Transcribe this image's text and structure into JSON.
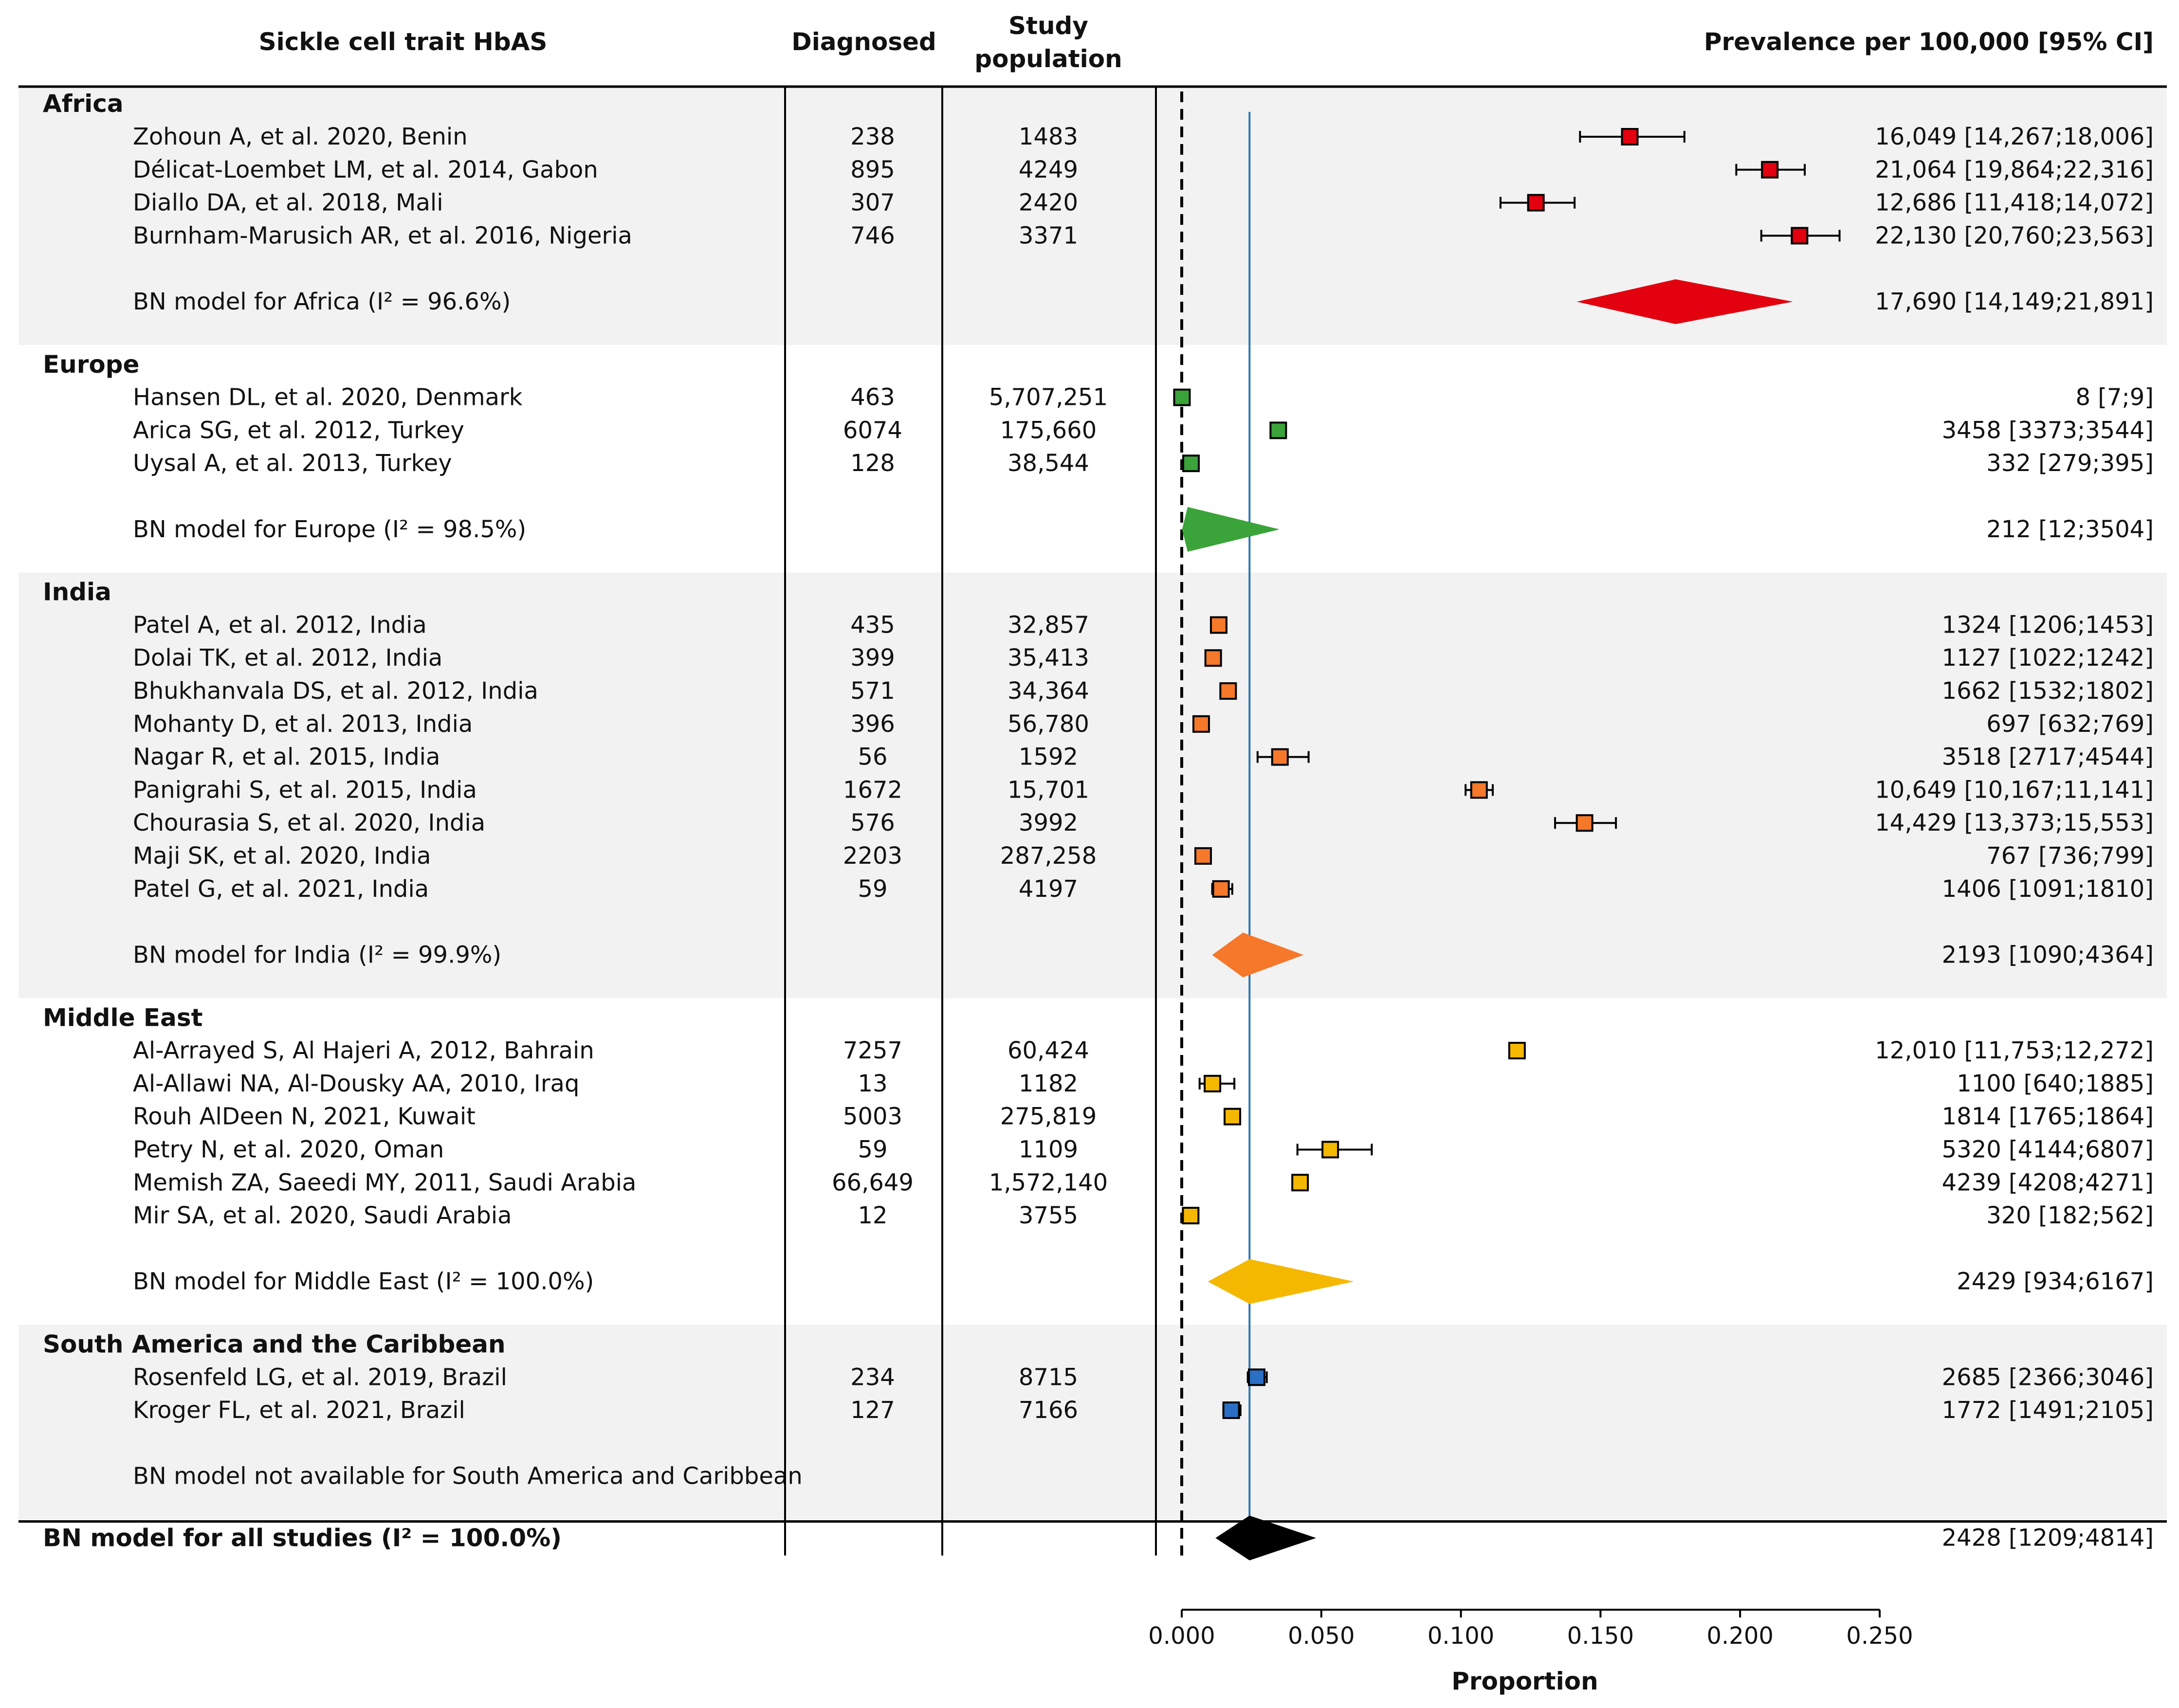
{
  "header": {
    "col_study": "Sickle cell trait HbAS",
    "col_diagnosed": "Diagnosed",
    "col_population_1": "Study",
    "col_population_2": "population",
    "col_prevalence": "Prevalence per 100,000 [95% CI]"
  },
  "chart_data": {
    "type": "forest",
    "xlabel": "Proportion",
    "xlim": [
      0,
      0.25
    ],
    "xticks": [
      "0.000",
      "0.050",
      "0.100",
      "0.150",
      "0.200",
      "0.250"
    ],
    "reference_line": 0,
    "overall_line": 0.02428,
    "colors": {
      "Africa": "#e3000f",
      "Europe": "#3aa33a",
      "India": "#f5782b",
      "Middle East": "#f5b800",
      "South America and the Caribbean": "#2a6fc4",
      "overall": "#000000",
      "axis_line": "#2e75b6"
    },
    "groups": [
      {
        "name": "Africa",
        "studies": [
          {
            "label": "Zohoun A, et al. 2020, Benin",
            "diagnosed": "238",
            "population": "1483",
            "est": 0.16049,
            "lo": 0.14267,
            "hi": 0.18006,
            "text": "16,049 [14,267;18,006]"
          },
          {
            "label": "Délicat-Loembet LM, et al. 2014, Gabon",
            "diagnosed": "895",
            "population": "4249",
            "est": 0.21064,
            "lo": 0.19864,
            "hi": 0.22316,
            "text": "21,064 [19,864;22,316]"
          },
          {
            "label": "Diallo DA, et al. 2018, Mali",
            "diagnosed": "307",
            "population": "2420",
            "est": 0.12686,
            "lo": 0.11418,
            "hi": 0.14072,
            "text": "12,686 [11,418;14,072]"
          },
          {
            "label": "Burnham-Marusich AR, et al. 2016, Nigeria",
            "diagnosed": "746",
            "population": "3371",
            "est": 0.2213,
            "lo": 0.2076,
            "hi": 0.23563,
            "text": "22,130 [20,760;23,563]"
          }
        ],
        "model": {
          "label": "BN model for Africa (I² = 96.6%)",
          "est": 0.1769,
          "lo": 0.14149,
          "hi": 0.21891,
          "text": "17,690 [14,149;21,891]"
        }
      },
      {
        "name": "Europe",
        "studies": [
          {
            "label": "Hansen DL, et al. 2020, Denmark",
            "diagnosed": "463",
            "population": "5,707,251",
            "est": 8e-05,
            "lo": 7e-05,
            "hi": 9e-05,
            "text": "8 [7;9]"
          },
          {
            "label": "Arica SG, et al. 2012, Turkey",
            "diagnosed": "6074",
            "population": "175,660",
            "est": 0.03458,
            "lo": 0.03373,
            "hi": 0.03544,
            "text": "3458 [3373;3544]"
          },
          {
            "label": "Uysal A, et al. 2013, Turkey",
            "diagnosed": "128",
            "population": "38,544",
            "est": 0.00332,
            "lo": 0.00279,
            "hi": 0.00395,
            "text": "332 [279;395]"
          }
        ],
        "model": {
          "label": "BN model for Europe (I² = 98.5%)",
          "est": 0.00212,
          "lo": 0.00012,
          "hi": 0.03504,
          "text": "212 [12;3504]"
        }
      },
      {
        "name": "India",
        "studies": [
          {
            "label": "Patel A, et al. 2012, India",
            "diagnosed": "435",
            "population": "32,857",
            "est": 0.01324,
            "lo": 0.01206,
            "hi": 0.01453,
            "text": "1324 [1206;1453]"
          },
          {
            "label": "Dolai TK, et al. 2012, India",
            "diagnosed": "399",
            "population": "35,413",
            "est": 0.01127,
            "lo": 0.01022,
            "hi": 0.01242,
            "text": "1127 [1022;1242]"
          },
          {
            "label": "Bhukhanvala DS, et al. 2012, India",
            "diagnosed": "571",
            "population": "34,364",
            "est": 0.01662,
            "lo": 0.01532,
            "hi": 0.01802,
            "text": "1662 [1532;1802]"
          },
          {
            "label": "Mohanty D, et al. 2013, India",
            "diagnosed": "396",
            "population": "56,780",
            "est": 0.00697,
            "lo": 0.00632,
            "hi": 0.00769,
            "text": "697 [632;769]"
          },
          {
            "label": "Nagar R, et al. 2015, India",
            "diagnosed": "56",
            "population": "1592",
            "est": 0.03518,
            "lo": 0.02717,
            "hi": 0.04544,
            "text": "3518 [2717;4544]"
          },
          {
            "label": "Panigrahi S, et al. 2015, India",
            "diagnosed": "1672",
            "population": "15,701",
            "est": 0.10649,
            "lo": 0.10167,
            "hi": 0.11141,
            "text": "10,649 [10,167;11,141]"
          },
          {
            "label": "Chourasia S, et al. 2020, India",
            "diagnosed": "576",
            "population": "3992",
            "est": 0.14429,
            "lo": 0.13373,
            "hi": 0.15553,
            "text": "14,429 [13,373;15,553]"
          },
          {
            "label": "Maji SK, et al. 2020, India",
            "diagnosed": "2203",
            "population": "287,258",
            "est": 0.00767,
            "lo": 0.00736,
            "hi": 0.00799,
            "text": "767 [736;799]"
          },
          {
            "label": "Patel G, et al. 2021, India",
            "diagnosed": "59",
            "population": "4197",
            "est": 0.01406,
            "lo": 0.01091,
            "hi": 0.0181,
            "text": "1406 [1091;1810]"
          }
        ],
        "model": {
          "label": "BN model for India (I² = 99.9%)",
          "est": 0.02193,
          "lo": 0.0109,
          "hi": 0.04364,
          "text": "2193 [1090;4364]"
        }
      },
      {
        "name": "Middle East",
        "studies": [
          {
            "label": "Al-Arrayed S, Al Hajeri A, 2012, Bahrain",
            "diagnosed": "7257",
            "population": "60,424",
            "est": 0.1201,
            "lo": 0.11753,
            "hi": 0.12272,
            "text": "12,010 [11,753;12,272]"
          },
          {
            "label": "Al-Allawi NA, Al-Dousky AA, 2010, Iraq",
            "diagnosed": "13",
            "population": "1182",
            "est": 0.011,
            "lo": 0.0064,
            "hi": 0.01885,
            "text": "1100 [640;1885]"
          },
          {
            "label": "Rouh AlDeen N, 2021, Kuwait",
            "diagnosed": "5003",
            "population": "275,819",
            "est": 0.01814,
            "lo": 0.01765,
            "hi": 0.01864,
            "text": "1814 [1765;1864]"
          },
          {
            "label": "Petry N, et al. 2020, Oman",
            "diagnosed": "59",
            "population": "1109",
            "est": 0.0532,
            "lo": 0.04144,
            "hi": 0.06807,
            "text": "5320 [4144;6807]"
          },
          {
            "label": "Memish ZA, Saeedi MY, 2011, Saudi Arabia",
            "diagnosed": "66,649",
            "population": "1,572,140",
            "est": 0.04239,
            "lo": 0.04208,
            "hi": 0.04271,
            "text": "4239 [4208;4271]"
          },
          {
            "label": "Mir SA, et al. 2020, Saudi Arabia",
            "diagnosed": "12",
            "population": "3755",
            "est": 0.0032,
            "lo": 0.00182,
            "hi": 0.00562,
            "text": "320 [182;562]"
          }
        ],
        "model": {
          "label": "BN model for Middle East (I² = 100.0%)",
          "est": 0.02429,
          "lo": 0.00934,
          "hi": 0.06167,
          "text": "2429 [934;6167]"
        }
      },
      {
        "name": "South America and the Caribbean",
        "studies": [
          {
            "label": "Rosenfeld LG, et al. 2019, Brazil",
            "diagnosed": "234",
            "population": "8715",
            "est": 0.02685,
            "lo": 0.02366,
            "hi": 0.03046,
            "text": "2685 [2366;3046]"
          },
          {
            "label": "Kroger FL, et al. 2021, Brazil",
            "diagnosed": "127",
            "population": "7166",
            "est": 0.01772,
            "lo": 0.01491,
            "hi": 0.02105,
            "text": "1772 [1491;2105]"
          }
        ],
        "model": {
          "label": "BN model not available for South America and Caribbean",
          "est": null,
          "lo": null,
          "hi": null,
          "text": ""
        }
      }
    ],
    "overall": {
      "label": "BN model for all studies (I² = 100.0%)",
      "est": 0.02428,
      "lo": 0.01209,
      "hi": 0.04814,
      "text": "2428 [1209;4814]"
    }
  }
}
